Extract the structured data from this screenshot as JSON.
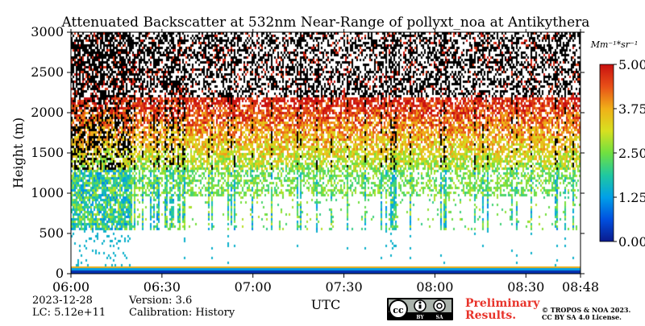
{
  "chart_data": {
    "type": "heatmap",
    "title": "Attenuated Backscatter at 532nm Near-Range of pollyxt_noa at Antikythera",
    "xlabel": "UTC",
    "ylabel": "Height (m)",
    "x_ticks": [
      "06:00",
      "06:30",
      "07:00",
      "07:30",
      "08:00",
      "08:30",
      "08:48"
    ],
    "x_range": [
      "06:00",
      "08:48"
    ],
    "y_ticks": [
      0,
      500,
      1000,
      1500,
      2000,
      2500,
      3000
    ],
    "ylim": [
      0,
      3000
    ],
    "colorbar": {
      "unit": "Mm⁻¹*sr⁻¹",
      "range": [
        0.0,
        5.0
      ],
      "ticks": [
        "5.00",
        "3.75",
        "2.50",
        "1.25",
        "0.00"
      ],
      "colormap": [
        "#0a1a8c",
        "#0050e0",
        "#00a0e8",
        "#20c8a0",
        "#70e040",
        "#d8e020",
        "#f0b018",
        "#e85018",
        "#c81010"
      ]
    },
    "features": [
      {
        "height_range_m": [
          0,
          80
        ],
        "description_value": "near-surface band, low backscatter"
      },
      {
        "height_range_m": [
          600,
          1300
        ],
        "description_value": "low-mid backscatter layer"
      },
      {
        "height_range_m": [
          1300,
          2200
        ],
        "description_value": "aerosol layer, high backscatter"
      },
      {
        "height_range_m": [
          2200,
          3000
        ],
        "description_value": "noisy signal"
      }
    ]
  },
  "footer": {
    "date": "2023-12-28",
    "lc": "LC: 5.12e+11",
    "version": "Version: 3.6",
    "calibration": "Calibration: History",
    "license_badge": [
      "BY",
      "SA"
    ],
    "preliminary_line1": "Preliminary",
    "preliminary_line2": "Results.",
    "copyright_line1": "© TROPOS & NOA 2023.",
    "copyright_line2": "CC BY SA 4.0 License."
  },
  "colors": {
    "preliminary": "#e8332a",
    "axis": "#000000"
  }
}
